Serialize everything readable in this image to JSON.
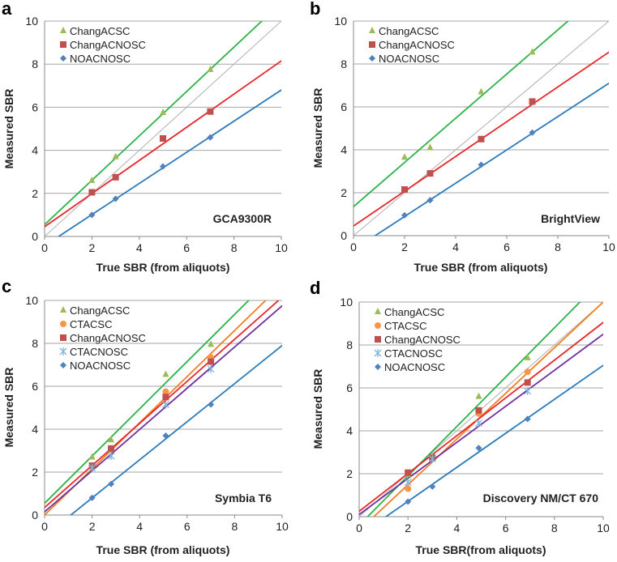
{
  "colors": {
    "ChangACSC": {
      "marker": "#9bbb59",
      "line": "#2eb24a"
    },
    "CTACSC": {
      "marker": "#f79646",
      "line": "#f07f22"
    },
    "ChangACNOSC": {
      "marker": "#c0504d",
      "line": "#e8262a"
    },
    "CTACNOSC": {
      "marker": "#7fb6d8",
      "line": "#7030a0"
    },
    "NOACNOSC": {
      "marker": "#4f81bd",
      "line": "#2a7ab9"
    },
    "identity": "#b0b0b0",
    "grid": "#a6a6a6"
  },
  "chart_data": [
    {
      "type": "scatter",
      "panel": "a",
      "device": "GCA9300R",
      "xlabel": "True SBR (from aliquots)",
      "ylabel": "Measured SBR",
      "xlim": [
        0,
        10
      ],
      "ylim": [
        0,
        10
      ],
      "xticks": [
        "0",
        "2",
        "4",
        "6",
        "8",
        "10"
      ],
      "yticks": [
        "0",
        "2",
        "4",
        "6",
        "8",
        "10"
      ],
      "grid": "horizontal",
      "legend": "top-left",
      "identity_line": true,
      "series": [
        {
          "name": "ChangACSC",
          "marker": "triangle",
          "x": [
            2,
            3,
            5,
            7
          ],
          "y": [
            2.6,
            3.7,
            5.75,
            7.75
          ],
          "fit": {
            "slope": 1.03,
            "intercept": 0.55
          }
        },
        {
          "name": "ChangACNOSC",
          "marker": "square",
          "x": [
            2,
            3,
            5,
            7
          ],
          "y": [
            2.05,
            2.75,
            4.55,
            5.8
          ],
          "fit": {
            "slope": 0.77,
            "intercept": 0.45
          }
        },
        {
          "name": "NOACNOSC",
          "marker": "diamond",
          "x": [
            2,
            3,
            5,
            7
          ],
          "y": [
            1.0,
            1.75,
            3.25,
            4.6
          ],
          "fit": {
            "slope": 0.723,
            "intercept": -0.43
          }
        }
      ]
    },
    {
      "type": "scatter",
      "panel": "b",
      "device": "BrightView",
      "xlabel": "True SBR (from aliquots)",
      "ylabel": "Measured SBR",
      "xlim": [
        0,
        10
      ],
      "ylim": [
        0,
        10
      ],
      "xticks": [
        "0",
        "2",
        "4",
        "6",
        "8",
        "10"
      ],
      "yticks": [
        "0",
        "2",
        "4",
        "6",
        "8",
        "10"
      ],
      "grid": "horizontal",
      "legend": "top-left",
      "identity_line": true,
      "series": [
        {
          "name": "ChangACSC",
          "marker": "triangle",
          "x": [
            2,
            3,
            5,
            7
          ],
          "y": [
            3.65,
            4.1,
            6.7,
            8.55
          ],
          "fit": {
            "slope": 1.03,
            "intercept": 1.35
          }
        },
        {
          "name": "ChangACNOSC",
          "marker": "square",
          "x": [
            2,
            3,
            5,
            7
          ],
          "y": [
            2.15,
            2.9,
            4.5,
            6.25
          ],
          "fit": {
            "slope": 0.81,
            "intercept": 0.45
          }
        },
        {
          "name": "NOACNOSC",
          "marker": "diamond",
          "x": [
            2,
            3,
            5,
            7
          ],
          "y": [
            0.95,
            1.65,
            3.3,
            4.8
          ],
          "fit": {
            "slope": 0.776,
            "intercept": -0.66
          }
        }
      ]
    },
    {
      "type": "scatter",
      "panel": "c",
      "device": "Symbia T6",
      "xlabel": "True SBR (from aliquots)",
      "ylabel": "Measured SBR",
      "xlim": [
        0,
        10
      ],
      "ylim": [
        0,
        10
      ],
      "xticks": [
        "0",
        "2",
        "4",
        "6",
        "8",
        "10"
      ],
      "yticks": [
        "0",
        "2",
        "4",
        "6",
        "8",
        "10"
      ],
      "grid": "horizontal",
      "legend": "top-left",
      "identity_line": false,
      "series": [
        {
          "name": "ChangACSC",
          "marker": "triangle",
          "x": [
            2,
            2.8,
            5.1,
            7
          ],
          "y": [
            2.7,
            3.5,
            6.55,
            7.95
          ],
          "fit": {
            "slope": 1.1,
            "intercept": 0.55
          }
        },
        {
          "name": "CTACSC",
          "marker": "circle",
          "x": [
            2,
            2.8,
            5.1,
            7
          ],
          "y": [
            2.3,
            3.05,
            5.75,
            7.35
          ],
          "fit": {
            "slope": 1.075,
            "intercept": 0.0
          }
        },
        {
          "name": "ChangACNOSC",
          "marker": "square",
          "x": [
            2,
            2.8,
            5.1,
            7
          ],
          "y": [
            2.3,
            3.1,
            5.5,
            7.15
          ],
          "fit": {
            "slope": 0.98,
            "intercept": 0.35
          }
        },
        {
          "name": "CTACNOSC",
          "marker": "star",
          "x": [
            2,
            2.8,
            5.1,
            7
          ],
          "y": [
            2.2,
            2.75,
            5.15,
            6.8
          ],
          "fit": {
            "slope": 0.96,
            "intercept": 0.15
          }
        },
        {
          "name": "NOACNOSC",
          "marker": "diamond",
          "x": [
            2,
            2.8,
            5.1,
            7
          ],
          "y": [
            0.8,
            1.45,
            3.7,
            5.15
          ],
          "fit": {
            "slope": 0.888,
            "intercept": -0.98
          }
        }
      ]
    },
    {
      "type": "scatter",
      "panel": "d",
      "device": "Discovery NM/CT 670",
      "xlabel": "True SBR(from aliquots)",
      "ylabel": "Measured SBR",
      "xlim": [
        0,
        10
      ],
      "ylim": [
        0,
        10
      ],
      "xticks": [
        "0",
        "2",
        "4",
        "6",
        "8",
        "10"
      ],
      "yticks": [
        "0",
        "2",
        "4",
        "6",
        "8",
        "10"
      ],
      "grid": "horizontal",
      "legend": "top-left",
      "identity_line": true,
      "series": [
        {
          "name": "ChangACSC",
          "marker": "triangle",
          "x": [
            2,
            3,
            4.9,
            6.9
          ],
          "y": [
            1.95,
            2.8,
            5.6,
            7.4
          ],
          "fit": {
            "slope": 1.15,
            "intercept": -0.4
          }
        },
        {
          "name": "CTACSC",
          "marker": "circle",
          "x": [
            2,
            3,
            4.9,
            6.9
          ],
          "y": [
            1.3,
            2.7,
            4.8,
            6.75
          ],
          "fit": {
            "slope": 1.064,
            "intercept": -0.64
          }
        },
        {
          "name": "ChangACNOSC",
          "marker": "square",
          "x": [
            2,
            3,
            4.9,
            6.9
          ],
          "y": [
            2.05,
            2.75,
            4.95,
            6.25
          ],
          "fit": {
            "slope": 0.88,
            "intercept": 0.25
          }
        },
        {
          "name": "CTACNOSC",
          "marker": "star",
          "x": [
            2,
            3,
            4.9,
            6.9
          ],
          "y": [
            1.6,
            2.7,
            4.35,
            5.85
          ],
          "fit": {
            "slope": 0.84,
            "intercept": 0.1
          }
        },
        {
          "name": "NOACNOSC",
          "marker": "diamond",
          "x": [
            2,
            3,
            4.9,
            6.9
          ],
          "y": [
            0.7,
            1.4,
            3.2,
            4.55
          ],
          "fit": {
            "slope": 0.792,
            "intercept": -0.87
          }
        }
      ]
    }
  ]
}
